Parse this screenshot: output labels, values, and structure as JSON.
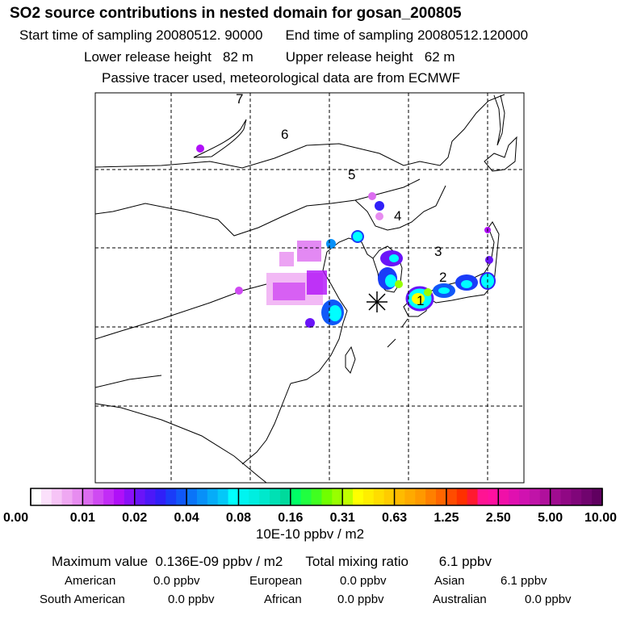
{
  "header": {
    "title": "SO2 source contributions in nested domain for gosan_200805",
    "start_time": "Start time of sampling 20080512. 90000",
    "end_time": "End time of sampling 20080512.120000",
    "lower_height": "Lower release height   82 m",
    "upper_height": "Upper release height   62 m",
    "note": "Passive tracer used, meteorological data are from ECMWF"
  },
  "chart_data": {
    "type": "heatmap",
    "title": "SO2 source contributions in nested domain for gosan_200805",
    "colorbar": {
      "ticks": [
        "0.00",
        "0.01",
        "0.02",
        "0.04",
        "0.08",
        "0.16",
        "0.31",
        "0.63",
        "1.25",
        "2.50",
        "5.00",
        "10.00"
      ],
      "colors": [
        "#ffffff",
        "#fbe0fb",
        "#f6c4f6",
        "#efa8f2",
        "#e78cf0",
        "#dc6cf0",
        "#cf4af2",
        "#c22cf6",
        "#b010f8",
        "#8a10f8",
        "#6a14f8",
        "#4c18f8",
        "#3020f8",
        "#1a3cf8",
        "#1058f8",
        "#0a74f8",
        "#0890f8",
        "#06acf8",
        "#04c8f8",
        "#00ffff",
        "#00f4f0",
        "#00eee0",
        "#00e8cc",
        "#00e0b4",
        "#00da9c",
        "#00ff66",
        "#20ff40",
        "#40ff20",
        "#70ff00",
        "#98ff00",
        "#c0ff00",
        "#ffff00",
        "#ffee00",
        "#ffdd00",
        "#ffcc00",
        "#ffbb00",
        "#ffaa00",
        "#ff9900",
        "#ff8000",
        "#ff6600",
        "#ff4c00",
        "#ff3000",
        "#ff1a30",
        "#ff1493",
        "#ff10a0",
        "#f010a8",
        "#e010b0",
        "#d012b0",
        "#c014a8",
        "#b0109c",
        "#a00c90",
        "#900884",
        "#80067a",
        "#70046e",
        "#600060"
      ],
      "unit": "10E-10 ppbv / m2"
    },
    "map": {
      "receptor": "Gosan",
      "region_labels": [
        "1",
        "2",
        "3",
        "4",
        "5",
        "6",
        "7"
      ],
      "grid": "dashed lat/lon"
    },
    "summary": {
      "maximum_label": "Maximum value",
      "maximum_value": "0.136E-09 ppbv / m2",
      "total_label": "Total mixing ratio",
      "total_value": "6.1 ppbv"
    },
    "regions": [
      {
        "name": "American",
        "value": "0.0 ppbv"
      },
      {
        "name": "European",
        "value": "0.0 ppbv"
      },
      {
        "name": "Asian",
        "value": "6.1 ppbv"
      },
      {
        "name": "South American",
        "value": "0.0 ppbv"
      },
      {
        "name": "African",
        "value": "0.0 ppbv"
      },
      {
        "name": "Australian",
        "value": "0.0 ppbv"
      }
    ]
  }
}
